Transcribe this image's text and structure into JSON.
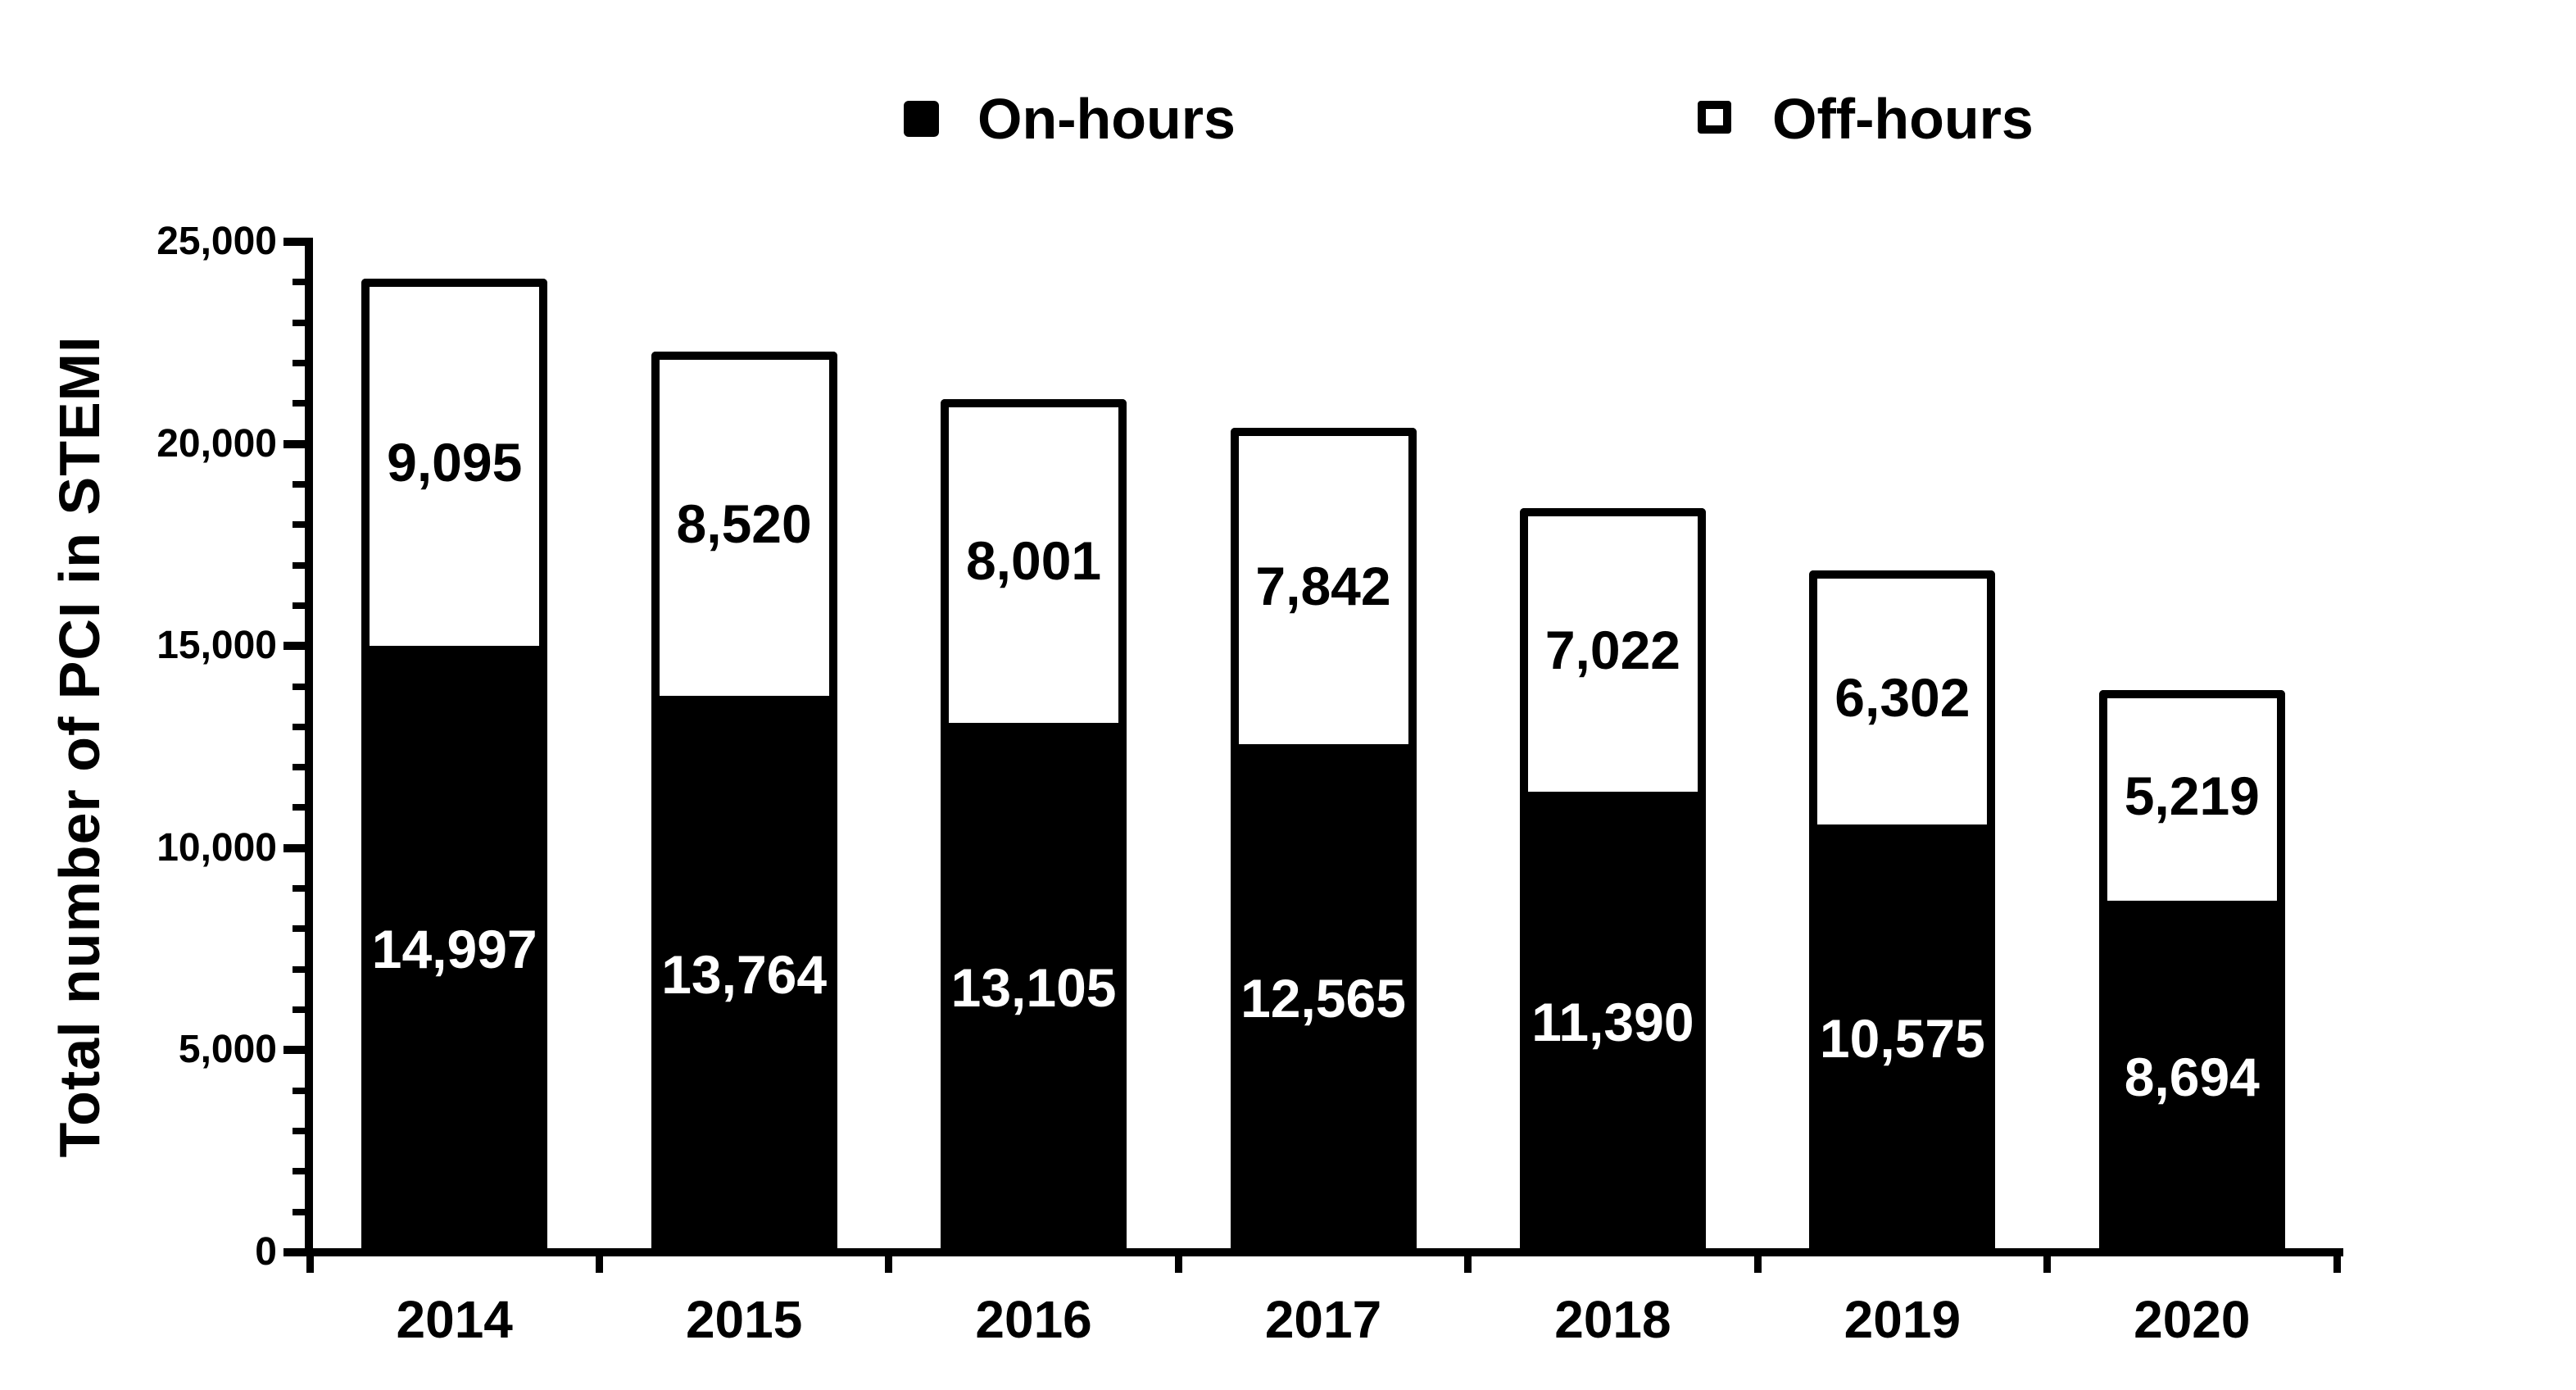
{
  "colors": {
    "ink": "#000000",
    "background": "#ffffff"
  },
  "legend": {
    "position": "top",
    "items": [
      {
        "label": "On-hours",
        "swatch": "filled-black-square"
      },
      {
        "label": "Off-hours",
        "swatch": "outlined-white-square"
      }
    ]
  },
  "chart_data": {
    "type": "bar",
    "stacked": true,
    "title": "",
    "categories": [
      "2014",
      "2015",
      "2016",
      "2017",
      "2018",
      "2019",
      "2020"
    ],
    "series": [
      {
        "name": "On-hours",
        "fill": "#000000",
        "label_color": "#ffffff",
        "values": [
          14997,
          13764,
          13105,
          12565,
          11390,
          10575,
          8694
        ]
      },
      {
        "name": "Off-hours",
        "fill": "#ffffff",
        "label_color": "#000000",
        "values": [
          9095,
          8520,
          8001,
          7842,
          7022,
          6302,
          5219
        ]
      }
    ],
    "ylabel": "Total number of PCI in STEMI",
    "xlabel": "",
    "ylim": [
      0,
      25000
    ],
    "y_major_tick_values": [
      0,
      5000,
      10000,
      15000,
      20000,
      25000
    ],
    "y_major_tick_labels": [
      "0",
      "5,000",
      "10,000",
      "15,000",
      "20,000",
      "25,000"
    ],
    "y_minor_tick_step": 1000,
    "grid": false,
    "legend_position": "top",
    "bar_value_labels_shown": true
  }
}
